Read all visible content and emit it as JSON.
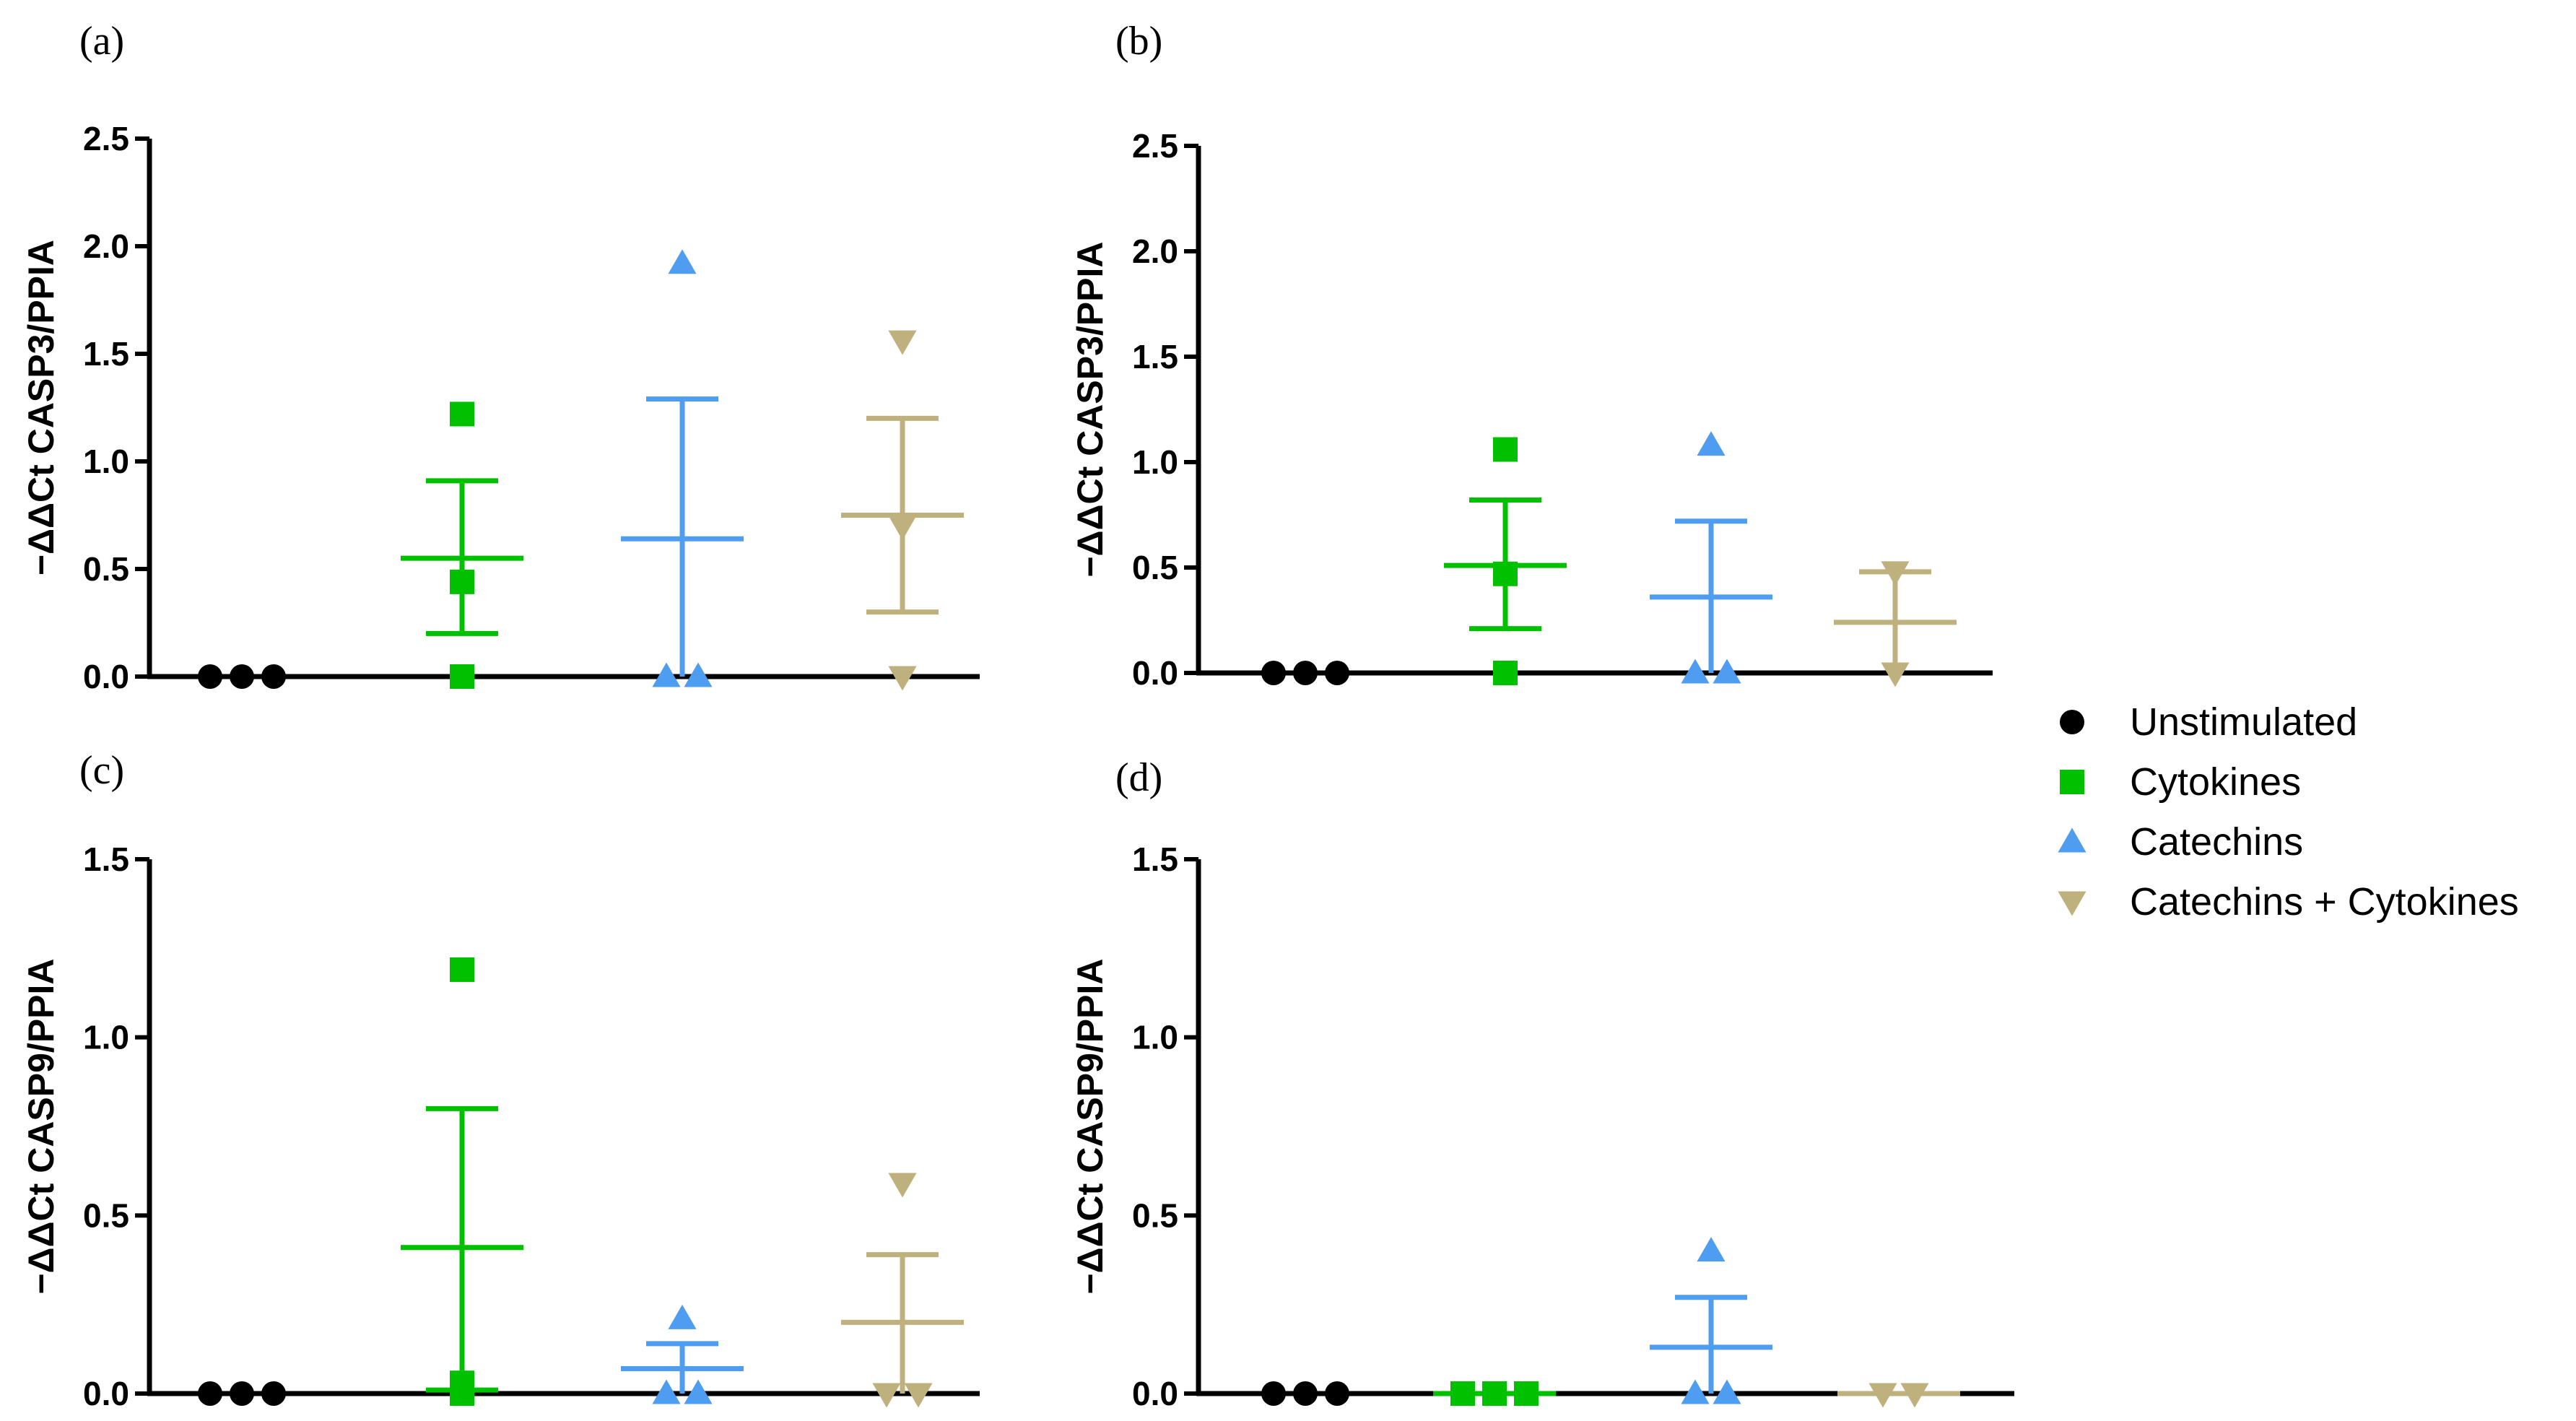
{
  "legend": [
    {
      "label": "Unstimulated",
      "color": "#000000",
      "marker": "circle"
    },
    {
      "label": "Cytokines",
      "color": "#00c000",
      "marker": "square"
    },
    {
      "label": "Catechins",
      "color": "#4f9df0",
      "marker": "triangle-up"
    },
    {
      "label": "Catechins + Cytokines",
      "color": "#bfb17e",
      "marker": "triangle-down"
    }
  ],
  "chart_data": [
    {
      "panel": "(a)",
      "type": "scatter",
      "ylabel": "−ΔΔCt CASP3/PPIA",
      "ylim": [
        0,
        2.5
      ],
      "yticks": [
        "0.0",
        "0.5",
        "1.0",
        "1.5",
        "2.0",
        "2.5"
      ],
      "groups": [
        {
          "name": "Unstimulated",
          "points": [
            0,
            0,
            0
          ],
          "mean": 0,
          "sem_low": 0,
          "sem_high": 0
        },
        {
          "name": "Cytokines",
          "points": [
            0,
            0.44,
            1.22
          ],
          "mean": 0.55,
          "sem_low": 0.2,
          "sem_high": 0.91
        },
        {
          "name": "Catechins",
          "points": [
            0,
            0,
            1.92
          ],
          "mean": 0.64,
          "sem_low": 0,
          "sem_high": 1.29
        },
        {
          "name": "Catechins + Cytokines",
          "points": [
            0,
            0.7,
            1.56
          ],
          "mean": 0.75,
          "sem_low": 0.3,
          "sem_high": 1.2
        }
      ]
    },
    {
      "panel": "(b)",
      "type": "scatter",
      "ylabel": "−ΔΔCt CASP3/PPIA",
      "ylim": [
        0,
        2.5
      ],
      "yticks": [
        "0.0",
        "0.5",
        "1.0",
        "1.5",
        "2.0",
        "2.5"
      ],
      "groups": [
        {
          "name": "Unstimulated",
          "points": [
            0,
            0,
            0
          ],
          "mean": 0,
          "sem_low": 0,
          "sem_high": 0
        },
        {
          "name": "Cytokines",
          "points": [
            0,
            0.47,
            1.06
          ],
          "mean": 0.51,
          "sem_low": 0.21,
          "sem_high": 0.82
        },
        {
          "name": "Catechins",
          "points": [
            0,
            0,
            1.08
          ],
          "mean": 0.36,
          "sem_low": 0,
          "sem_high": 0.72
        },
        {
          "name": "Catechins + Cytokines",
          "points": [
            0,
            0.48
          ],
          "mean": 0.24,
          "sem_low": 0,
          "sem_high": 0.48
        }
      ]
    },
    {
      "panel": "(c)",
      "type": "scatter",
      "ylabel": "−ΔΔCt CASP9/PPIA",
      "ylim": [
        0,
        1.5
      ],
      "yticks": [
        "0.0",
        "0.5",
        "1.0",
        "1.5"
      ],
      "groups": [
        {
          "name": "Unstimulated",
          "points": [
            0,
            0,
            0
          ],
          "mean": 0,
          "sem_low": 0,
          "sem_high": 0
        },
        {
          "name": "Cytokines",
          "points": [
            0,
            0.03,
            1.19
          ],
          "mean": 0.41,
          "sem_low": 0.01,
          "sem_high": 0.8
        },
        {
          "name": "Catechins",
          "points": [
            0,
            0,
            0.21
          ],
          "mean": 0.07,
          "sem_low": 0,
          "sem_high": 0.14
        },
        {
          "name": "Catechins + Cytokines",
          "points": [
            0,
            0,
            0.59
          ],
          "mean": 0.2,
          "sem_low": 0,
          "sem_high": 0.39
        }
      ]
    },
    {
      "panel": "(d)",
      "type": "scatter",
      "ylabel": "−ΔΔCt CASP9/PPIA",
      "ylim": [
        0,
        1.5
      ],
      "yticks": [
        "0.0",
        "0.5",
        "1.0",
        "1.5"
      ],
      "groups": [
        {
          "name": "Unstimulated",
          "points": [
            0,
            0,
            0
          ],
          "mean": 0,
          "sem_low": 0,
          "sem_high": 0
        },
        {
          "name": "Cytokines",
          "points": [
            0,
            0,
            0
          ],
          "mean": 0,
          "sem_low": 0,
          "sem_high": 0
        },
        {
          "name": "Catechins",
          "points": [
            0,
            0,
            0.4
          ],
          "mean": 0.13,
          "sem_low": 0,
          "sem_high": 0.27
        },
        {
          "name": "Catechins + Cytokines",
          "points": [
            0,
            0
          ],
          "mean": 0,
          "sem_low": 0,
          "sem_high": 0
        }
      ]
    }
  ]
}
